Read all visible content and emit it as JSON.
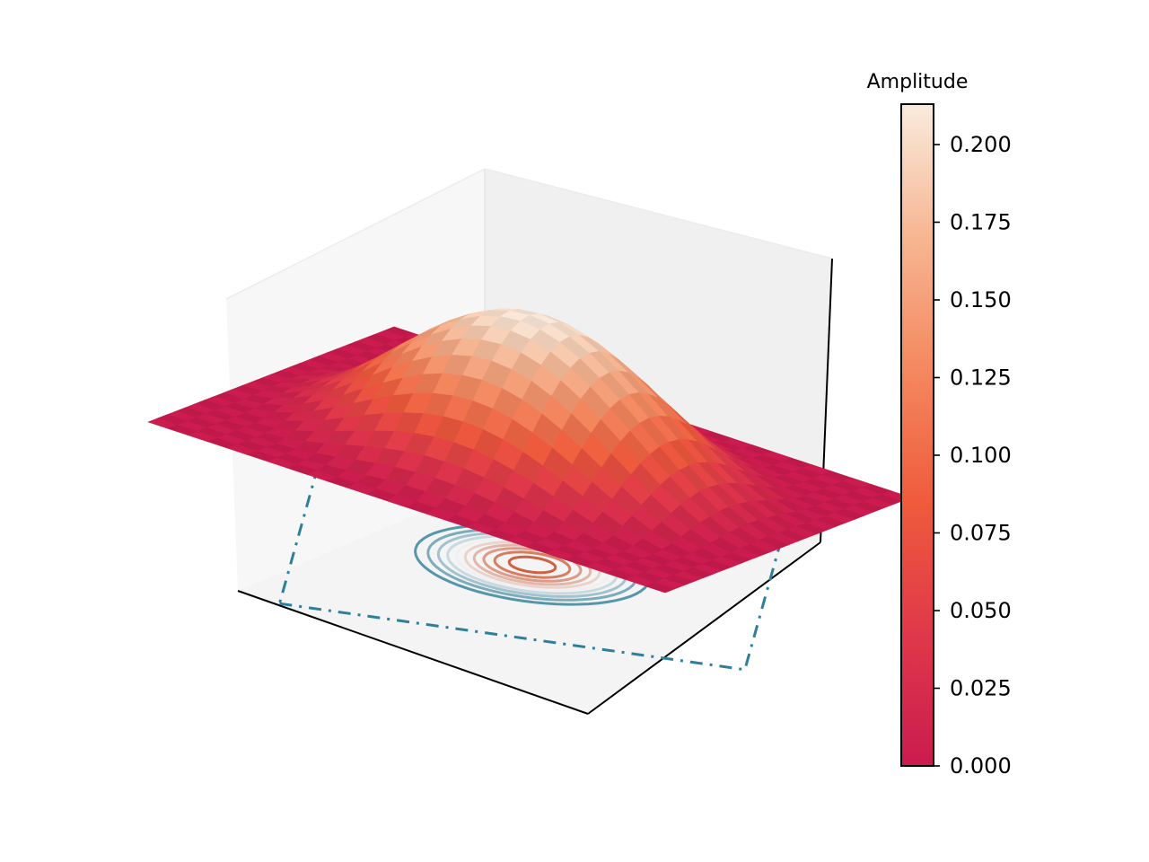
{
  "chart_data": {
    "type": "surface",
    "surface": {
      "shape": "radial-cosine-bump",
      "peak_value": 0.213,
      "baseline_value": 0.0,
      "x_range": [
        -1,
        1
      ],
      "y_range": [
        -1,
        1
      ],
      "colormap": "rocket"
    },
    "contours": {
      "projection": "floor",
      "levels": [
        0.0,
        0.02,
        0.04,
        0.06,
        0.08,
        0.1,
        0.12,
        0.14,
        0.16,
        0.18,
        0.2
      ],
      "colormap": "diverging blue-to-red"
    },
    "colorbar": {
      "title": "Amplitude",
      "range": [
        0.0,
        0.213
      ],
      "ticks": [
        "0.000",
        "0.025",
        "0.050",
        "0.075",
        "0.100",
        "0.125",
        "0.150",
        "0.175",
        "0.200"
      ],
      "tick_values": [
        0.0,
        0.025,
        0.05,
        0.075,
        0.1,
        0.125,
        0.15,
        0.175,
        0.2
      ]
    },
    "axes_tick_labels_visible": false,
    "grid": false,
    "colors": {
      "surface_base": "#cb1b4f",
      "surface_peak": "#faebdd",
      "contour_outer": "#2e7f9a",
      "contour_inner": "#d0603f",
      "pane_back": "#f2f2f2",
      "pane_side": "#f7f7f7",
      "pane_floor": "#f2f2f2"
    }
  }
}
